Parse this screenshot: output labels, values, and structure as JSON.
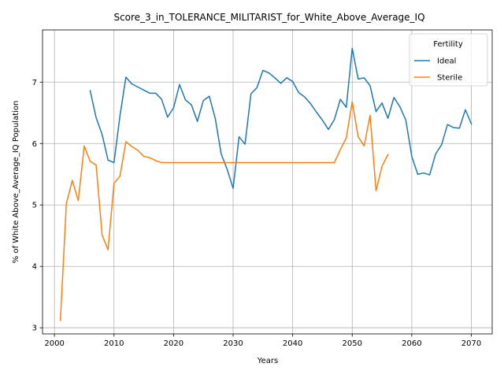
{
  "chart_data": {
    "type": "line",
    "title": "Score_3_in_TOLERANCE_MILITARIST_for_White_Above_Average_IQ",
    "xlabel": "Years",
    "ylabel": "% of White Above_Average_IQ Population",
    "xlim": [
      1998,
      2073.5
    ],
    "ylim": [
      2.9,
      7.85
    ],
    "xticks": [
      2000,
      2010,
      2020,
      2030,
      2040,
      2050,
      2060,
      2070
    ],
    "yticks": [
      3,
      4,
      5,
      6,
      7
    ],
    "grid": true,
    "legend": {
      "title": "Fertility",
      "placement": "top-right"
    },
    "series": [
      {
        "name": "Ideal",
        "color": "#1f77b4",
        "x": [
          2006,
          2007,
          2008,
          2009,
          2010,
          2011,
          2012,
          2013,
          2014,
          2015,
          2016,
          2017,
          2018,
          2019,
          2020,
          2021,
          2022,
          2023,
          2024,
          2025,
          2026,
          2027,
          2028,
          2029,
          2030,
          2031,
          2032,
          2033,
          2034,
          2035,
          2036,
          2037,
          2038,
          2039,
          2040,
          2041,
          2042,
          2043,
          2044,
          2045,
          2046,
          2047,
          2048,
          2049,
          2050,
          2051,
          2052,
          2053,
          2054,
          2055,
          2056,
          2057,
          2058,
          2059,
          2060,
          2061,
          2062,
          2063,
          2064,
          2065,
          2066,
          2067,
          2068,
          2069,
          2070
        ],
        "values": [
          6.86,
          6.42,
          6.15,
          5.73,
          5.69,
          6.45,
          7.08,
          6.97,
          6.92,
          6.87,
          6.82,
          6.82,
          6.72,
          6.43,
          6.58,
          6.96,
          6.71,
          6.63,
          6.36,
          6.7,
          6.77,
          6.41,
          5.83,
          5.58,
          5.27,
          6.11,
          5.99,
          6.81,
          6.91,
          7.19,
          7.15,
          7.07,
          6.98,
          7.07,
          7.01,
          6.83,
          6.76,
          6.65,
          6.51,
          6.38,
          6.23,
          6.39,
          6.72,
          6.59,
          7.55,
          7.05,
          7.07,
          6.94,
          6.52,
          6.66,
          6.41,
          6.75,
          6.6,
          6.38,
          5.79,
          5.5,
          5.52,
          5.49,
          5.83,
          5.98,
          6.31,
          6.26,
          6.25,
          6.55,
          6.32
        ]
      },
      {
        "name": "Sterile",
        "color": "#ff7f0e",
        "x": [
          2001,
          2002,
          2003,
          2004,
          2005,
          2006,
          2007,
          2008,
          2009,
          2010,
          2011,
          2012,
          2013,
          2014,
          2015,
          2016,
          2017,
          2018,
          2019,
          2020,
          2021,
          2022,
          2023,
          2024,
          2025,
          2026,
          2027,
          2028,
          2029,
          2030,
          2031,
          2032,
          2033,
          2034,
          2035,
          2036,
          2037,
          2038,
          2039,
          2040,
          2041,
          2042,
          2043,
          2044,
          2045,
          2046,
          2047,
          2048,
          2049,
          2050,
          2051,
          2052,
          2053,
          2054,
          2055,
          2056
        ],
        "values": [
          3.12,
          5.02,
          5.4,
          5.07,
          5.96,
          5.71,
          5.65,
          4.51,
          4.27,
          5.35,
          5.47,
          6.03,
          5.95,
          5.89,
          5.79,
          5.77,
          5.72,
          5.69,
          5.69,
          5.69,
          5.69,
          5.69,
          5.69,
          5.69,
          5.69,
          5.69,
          5.69,
          5.69,
          5.69,
          5.69,
          5.69,
          5.69,
          5.69,
          5.69,
          5.69,
          5.69,
          5.69,
          5.69,
          5.69,
          5.69,
          5.69,
          5.69,
          5.69,
          5.69,
          5.69,
          5.69,
          5.69,
          5.9,
          6.09,
          6.68,
          6.11,
          5.96,
          6.46,
          5.23,
          5.63,
          5.82
        ]
      }
    ]
  }
}
